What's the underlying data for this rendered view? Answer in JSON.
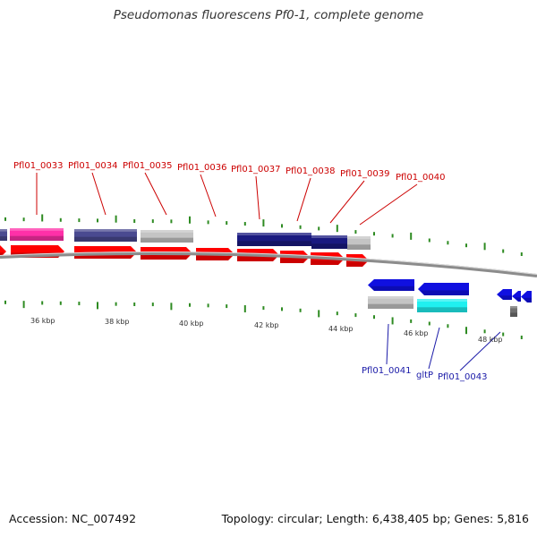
{
  "title": "Pseudomonas fluorescens Pf0-1, complete genome",
  "footer": {
    "accession": "Accession: NC_007492",
    "summary": "Topology: circular; Length: 6,438,405 bp; Genes: 5,816"
  },
  "colors": {
    "forward_gene": "#ff0000",
    "reverse_gene": "#1010e0",
    "tick": "#2e8b22",
    "backbone": "#8c8c8c",
    "label_top": "#cc0000",
    "label_bottom": "#1a1aa8",
    "cog_navy": "#1a1a80",
    "cog_slate": "#4a4a90",
    "cog_pink": "#ff30a8",
    "cog_grey": "#c4c4c4",
    "cog_cyan": "#20f0f0"
  },
  "scale_labels": [
    "36 kbp",
    "38 kbp",
    "40 kbp",
    "42 kbp",
    "44 kbp",
    "46 kbp",
    "48 kbp"
  ],
  "top_gene_labels": [
    "Pfl01_0033",
    "Pfl01_0034",
    "Pfl01_0035",
    "Pfl01_0036",
    "Pfl01_0037",
    "Pfl01_0038",
    "Pfl01_0039",
    "Pfl01_0040"
  ],
  "bottom_gene_labels": [
    "Pfl01_0041",
    "gltP",
    "Pfl01_0043"
  ]
}
